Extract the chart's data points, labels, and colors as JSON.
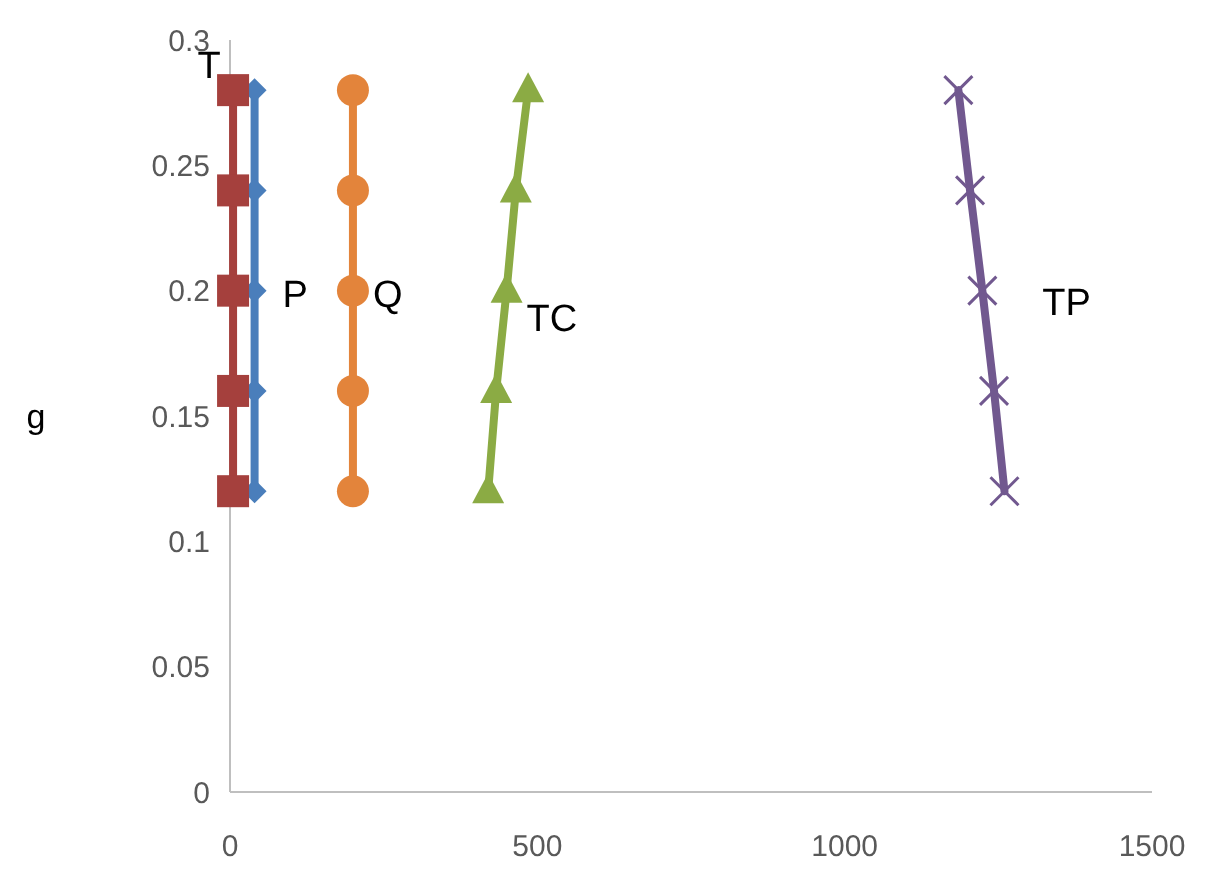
{
  "chart_data": {
    "type": "line",
    "ylabel": "g",
    "xlim": [
      0,
      1500
    ],
    "xticks": [
      0,
      500,
      1000,
      1500
    ],
    "ylim": [
      0,
      0.3
    ],
    "yticks": [
      0,
      0.05,
      0.1,
      0.15,
      0.2,
      0.25,
      0.3
    ],
    "grid": false,
    "line_style": "solid",
    "series": [
      {
        "name": "P",
        "color": "#4a7ebb",
        "marker": "diamond",
        "x": [
          40,
          40,
          40,
          40,
          40
        ],
        "values": [
          0.12,
          0.16,
          0.2,
          0.24,
          0.28
        ]
      },
      {
        "name": "T",
        "color": "#a5403d",
        "marker": "square",
        "x": [
          5,
          5,
          5,
          5,
          5
        ],
        "values": [
          0.12,
          0.16,
          0.2,
          0.24,
          0.28
        ]
      },
      {
        "name": "Q",
        "color": "#e3843b",
        "marker": "circle",
        "x": [
          200,
          200,
          200,
          200,
          200
        ],
        "values": [
          0.12,
          0.16,
          0.2,
          0.24,
          0.28
        ]
      },
      {
        "name": "TC",
        "color": "#8bab44",
        "marker": "triangle",
        "x": [
          420,
          433,
          450,
          465,
          485
        ],
        "values": [
          0.12,
          0.16,
          0.2,
          0.24,
          0.28
        ]
      },
      {
        "name": "TP",
        "color": "#71588f",
        "marker": "cross",
        "x": [
          1260,
          1243,
          1224,
          1204,
          1185
        ],
        "values": [
          0.12,
          0.16,
          0.2,
          0.24,
          0.28
        ]
      }
    ]
  }
}
